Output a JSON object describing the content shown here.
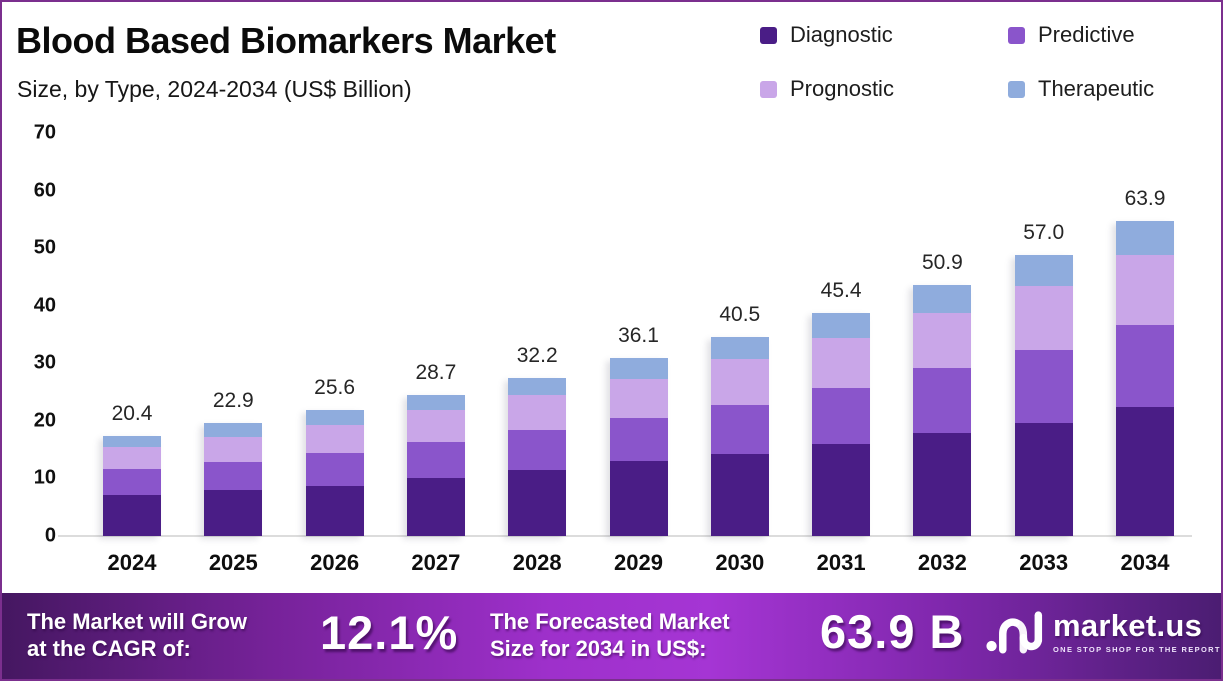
{
  "header": {
    "title": "Blood Based Biomarkers Market",
    "subtitle": "Size, by Type, 2024-2034 (US$ Billion)"
  },
  "legend": {
    "items": [
      {
        "label": "Diagnostic",
        "color": "#4A1D86"
      },
      {
        "label": "Predictive",
        "color": "#8A55CB"
      },
      {
        "label": "Prognostic",
        "color": "#C9A6E8"
      },
      {
        "label": "Therapeutic",
        "color": "#8FACDD"
      }
    ]
  },
  "chart_data": {
    "type": "bar",
    "stacked": true,
    "title": "Blood Based Biomarkers Market Size, by Type, 2024-2034 (US$ Billion)",
    "categories": [
      "2024",
      "2025",
      "2026",
      "2027",
      "2028",
      "2029",
      "2030",
      "2031",
      "2032",
      "2033",
      "2034"
    ],
    "totals": [
      "20.4",
      "22.9",
      "25.6",
      "28.7",
      "32.2",
      "36.1",
      "40.5",
      "45.4",
      "50.9",
      "57.0",
      "63.9"
    ],
    "series": [
      {
        "name": "Diagnostic",
        "color": "#4A1D86",
        "values": [
          8.3,
          9.4,
          10.2,
          11.7,
          13.4,
          15.3,
          16.7,
          18.7,
          20.9,
          23.0,
          26.3
        ]
      },
      {
        "name": "Predictive",
        "color": "#8A55CB",
        "values": [
          5.3,
          5.7,
          6.7,
          7.4,
          8.1,
          8.6,
          10.0,
          11.4,
          13.2,
          14.7,
          16.5
        ]
      },
      {
        "name": "Prognostic",
        "color": "#C9A6E8",
        "values": [
          4.4,
          5.1,
          5.7,
          6.4,
          7.2,
          8.0,
          9.3,
          10.2,
          11.2,
          13.0,
          14.2
        ]
      },
      {
        "name": "Therapeutic",
        "color": "#8FACDD",
        "values": [
          2.4,
          2.7,
          3.0,
          3.2,
          3.5,
          4.2,
          4.5,
          5.1,
          5.6,
          6.3,
          6.9
        ]
      }
    ],
    "xlabel": "",
    "ylabel": "",
    "ylim": [
      0,
      70
    ],
    "yticks": [
      0,
      10,
      20,
      30,
      40,
      50,
      60,
      70
    ],
    "grid": false,
    "legend_position": "top-right",
    "bar_visual_scale": 0.855
  },
  "footer": {
    "cagr_label_line1": "The Market will Grow",
    "cagr_label_line2": "at the CAGR of:",
    "cagr_value": "12.1%",
    "forecast_label_line1": "The Forecasted Market",
    "forecast_label_line2": "Size for 2034 in US$:",
    "forecast_value": "63.9 B",
    "brand": {
      "name": "market.us",
      "tagline": "ONE STOP SHOP FOR THE REPORTS"
    }
  }
}
